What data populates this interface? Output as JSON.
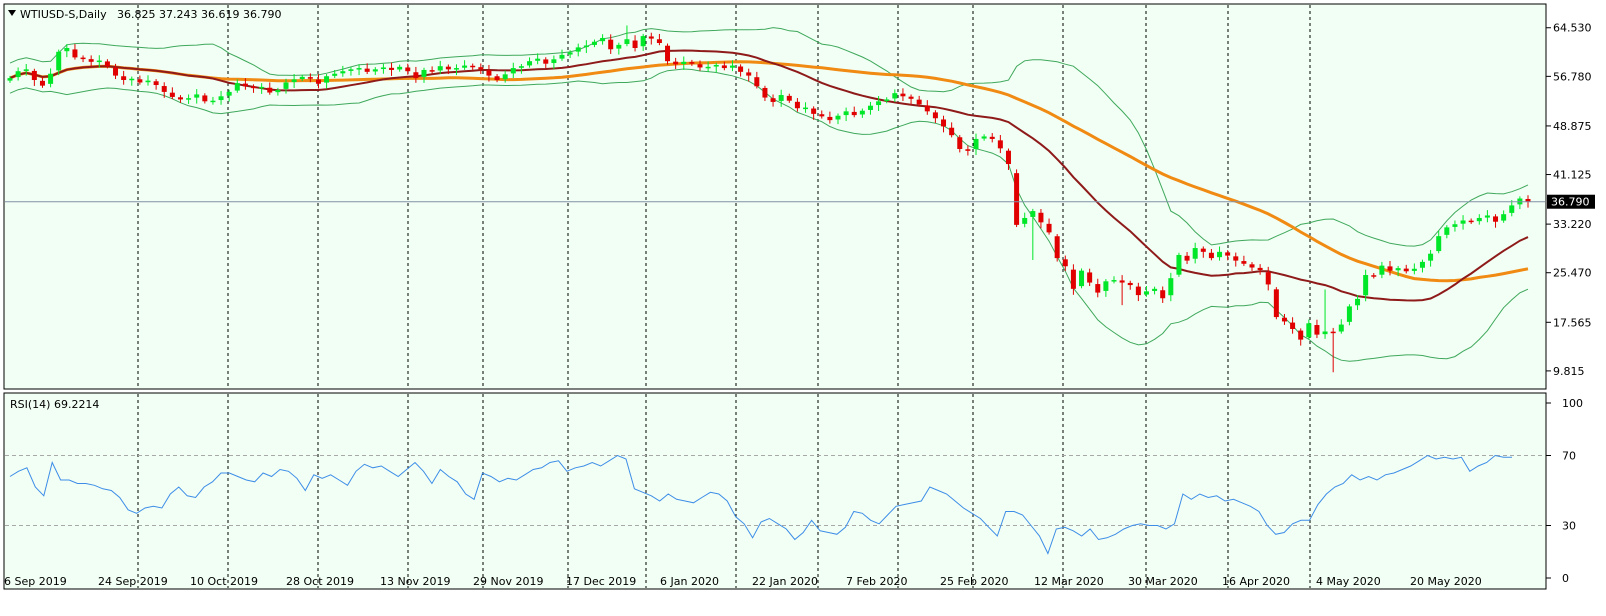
{
  "window": {
    "symbol_label": "WTIUSD-S,Daily",
    "ohlc_label": "36.825 37.243 36.619 36.790"
  },
  "colors": {
    "background": "#F2FFF4",
    "up_candle": "#00E628",
    "down_candle": "#E00000",
    "bollinger": "#3FA85C",
    "ma_fast": "#8E1A1A",
    "ma_slow": "#F08A12",
    "rsi_line": "#3D8DE8",
    "grid_vertical": "#000000",
    "price_line": "#8090A8",
    "level_dashed": "#A8A8A8"
  },
  "chart_data": [
    {
      "type": "candlestick",
      "symbol": "WTIUSD-S",
      "timeframe": "Daily",
      "current_price": 36.79,
      "current_price_label": "36.790",
      "y_axis": {
        "ticks": [
          64.53,
          56.78,
          48.875,
          41.125,
          33.22,
          25.47,
          17.565,
          9.815
        ],
        "tick_labels": [
          "64.530",
          "56.780",
          "48.875",
          "41.125",
          "33.220",
          "25.470",
          "17.565",
          "9.815"
        ]
      },
      "x_axis": {
        "dates": [
          "6 Sep 2019",
          "24 Sep 2019",
          "10 Oct 2019",
          "28 Oct 2019",
          "13 Nov 2019",
          "29 Nov 2019",
          "17 Dec 2019",
          "6 Jan 2020",
          "22 Jan 2020",
          "7 Feb 2020",
          "25 Feb 2020",
          "12 Mar 2020",
          "30 Mar 2020",
          "16 Apr 2020",
          "4 May 2020",
          "20 May 2020"
        ],
        "vertical_gridlines": [
          "24 Sep 2019",
          "10 Oct 2019",
          "28 Oct 2019",
          "13 Nov 2019",
          "29 Nov 2019",
          "17 Dec 2019",
          "6 Jan 2020",
          "22 Jan 2020",
          "7 Feb 2020",
          "25 Feb 2020",
          "12 Mar 2020",
          "30 Mar 2020",
          "16 Apr 2020",
          "4 May 2020",
          "20 May 2020"
        ]
      },
      "close_series": [
        56.5,
        57.6,
        57.9,
        56.2,
        55.3,
        57.2,
        60.7,
        61.3,
        59.8,
        59.6,
        59.1,
        59.3,
        58.4,
        56.9,
        56.2,
        56.4,
        55.8,
        56.1,
        55.4,
        54.3,
        53.5,
        53.1,
        53.3,
        53.9,
        52.8,
        52.9,
        53.6,
        54.3,
        55.7,
        55.2,
        54.9,
        55.1,
        54.2,
        54.6,
        55.8,
        56.3,
        56.7,
        56.4,
        55.6,
        56.8,
        57.2,
        57.6,
        57.9,
        58.1,
        57.5,
        57.9,
        58.2,
        57.8,
        58.3,
        57.6,
        56.5,
        57.8,
        57.6,
        58.4,
        57.9,
        58.1,
        58.5,
        58.3,
        57.9,
        56.9,
        56.2,
        57.1,
        58.1,
        58.4,
        59.2,
        59.6,
        58.8,
        59.5,
        60.2,
        60.6,
        61.4,
        61.7,
        62.3,
        62.9,
        61.1,
        61.8,
        62.7,
        61.3,
        63.2,
        62.8,
        62.1,
        59.2,
        58.7,
        59.1,
        58.8,
        58.2,
        58.3,
        58.6,
        58.1,
        58.5,
        57.5,
        56.9,
        55.2,
        53.4,
        52.7,
        53.8,
        52.9,
        51.7,
        51.8,
        50.8,
        50.4,
        49.8,
        50.5,
        51.2,
        50.6,
        51.3,
        52.1,
        52.8,
        53.1,
        54.1,
        53.6,
        53.2,
        52.3,
        51.2,
        50.1,
        48.8,
        47.4,
        45.2,
        44.9,
        46.8,
        47.2,
        46.8,
        45.3,
        42.8,
        33.1,
        34.2,
        35.3,
        33.5,
        31.9,
        27.8,
        26.5,
        22.9,
        25.8,
        23.9,
        22.3,
        24.1,
        24.3,
        23.9,
        23.5,
        21.9,
        22.5,
        22.9,
        21.4,
        24.6,
        28.3,
        27.4,
        29.4,
        28.8,
        27.8,
        28.8,
        28.2,
        27.4,
        26.9,
        26.3,
        25.9,
        23.6,
        18.4,
        17.7,
        16.5,
        14.8,
        17.4,
        15.6,
        16.1,
        15.9,
        17.2,
        20.1,
        21.3,
        25.1,
        24.9,
        26.6,
        25.8,
        26.2,
        25.7,
        26.1,
        27.2,
        28.5,
        31.3,
        32.7,
        33.2,
        33.8,
        33.6,
        34.2,
        34.6,
        33.6,
        34.8,
        36.2,
        37.3,
        36.8
      ],
      "rsi_series": [
        58,
        61,
        63,
        52,
        47,
        66,
        56,
        56,
        54,
        54,
        53,
        51,
        50,
        46,
        39,
        37,
        40,
        41,
        40,
        48,
        52,
        47,
        46,
        52,
        55,
        60,
        60,
        58,
        56,
        55,
        60,
        58,
        62,
        61,
        57,
        50,
        59,
        57,
        59,
        56,
        53,
        61,
        65,
        63,
        64,
        61,
        58,
        62,
        66,
        61,
        54,
        62,
        58,
        55,
        48,
        45,
        60,
        58,
        55,
        57,
        56,
        59,
        62,
        63,
        66,
        67,
        61,
        63,
        64,
        66,
        64,
        67,
        70,
        68,
        51,
        49,
        47,
        44,
        48,
        45,
        44,
        43,
        46,
        49,
        48,
        44,
        35,
        31,
        23,
        32,
        34,
        31,
        28,
        22,
        26,
        33,
        27,
        26,
        25,
        29,
        38,
        37,
        33,
        31,
        36,
        41,
        42,
        43,
        44,
        52,
        50,
        48,
        44,
        40,
        37,
        34,
        29,
        24,
        38,
        38,
        36,
        30,
        24,
        14,
        28,
        29,
        27,
        24,
        28,
        22,
        23,
        25,
        28,
        30,
        31,
        30,
        30,
        28,
        31,
        48,
        45,
        48,
        46,
        47,
        44,
        45,
        43,
        41,
        38,
        30,
        25,
        26,
        31,
        33,
        33,
        42,
        48,
        52,
        54,
        59,
        56,
        58,
        56,
        59,
        60,
        62,
        64,
        67,
        70,
        68,
        69,
        68,
        69,
        61,
        64,
        66,
        70,
        69,
        69
      ],
      "rsi": {
        "label": "RSI(14) 69.2214",
        "period": 14,
        "last": 69.2214,
        "levels": [
          30,
          70
        ],
        "ticks": [
          100,
          70,
          30,
          0
        ],
        "tick_labels": [
          "100",
          "70",
          "30",
          "0"
        ]
      },
      "indicators": [
        "Bollinger Bands",
        "fast moving average (dark red)",
        "slow moving average (orange)"
      ]
    }
  ]
}
